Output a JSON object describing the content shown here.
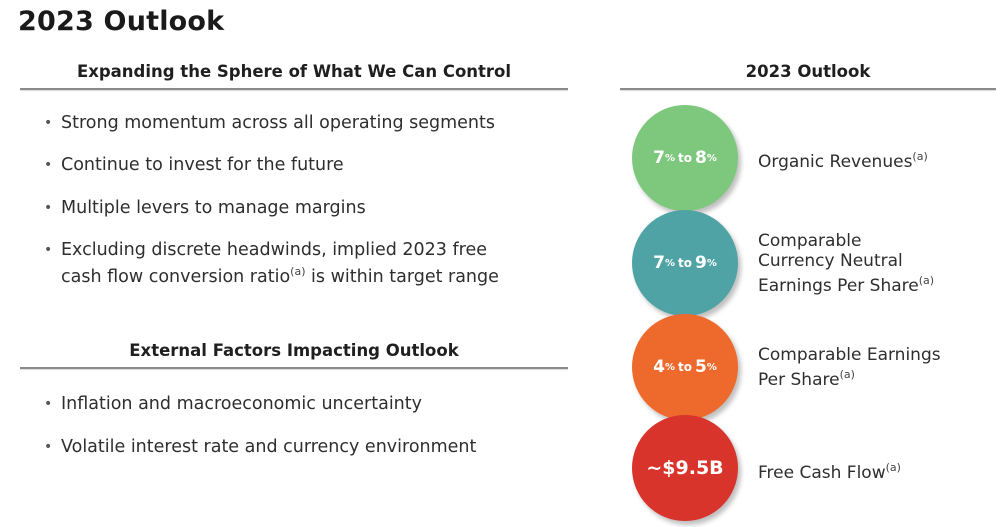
{
  "page": {
    "title": "2023 Outlook"
  },
  "left": {
    "section1": {
      "heading": "Expanding the Sphere of What We Can Control",
      "bullets": [
        "Strong momentum across all operating segments",
        "Continue to invest for the future",
        "Multiple levers to manage margins"
      ],
      "bullet4": {
        "line1": "Excluding discrete headwinds, implied 2023 free",
        "line2_before": "cash flow conversion ratio",
        "note": "(a)",
        "line2_after": " is within target range"
      }
    },
    "section2": {
      "heading": "External Factors Impacting Outlook",
      "bullets": [
        "Inflation and macroeconomic uncertainty",
        "Volatile interest rate and currency environment"
      ]
    }
  },
  "right": {
    "heading": "2023 Outlook",
    "colors": {
      "green": "#7ec87e",
      "teal": "#4fa3a5",
      "orange": "#ee6a2c",
      "red": "#d9342b"
    },
    "metrics": [
      {
        "low": "7",
        "high": "8",
        "pct": "%",
        "to": "to",
        "label_lines": [
          "Organic Revenues"
        ],
        "note": "(a)"
      },
      {
        "low": "7",
        "high": "9",
        "pct": "%",
        "to": "to",
        "label_lines": [
          "Comparable",
          "Currency Neutral",
          "Earnings Per Share"
        ],
        "note": "(a)"
      },
      {
        "low": "4",
        "high": "5",
        "pct": "%",
        "to": "to",
        "label_lines": [
          "Comparable Earnings",
          "Per Share"
        ],
        "note": "(a)"
      },
      {
        "value": "~$9.5B",
        "label_lines": [
          "Free Cash Flow"
        ],
        "note": "(a)"
      }
    ]
  }
}
